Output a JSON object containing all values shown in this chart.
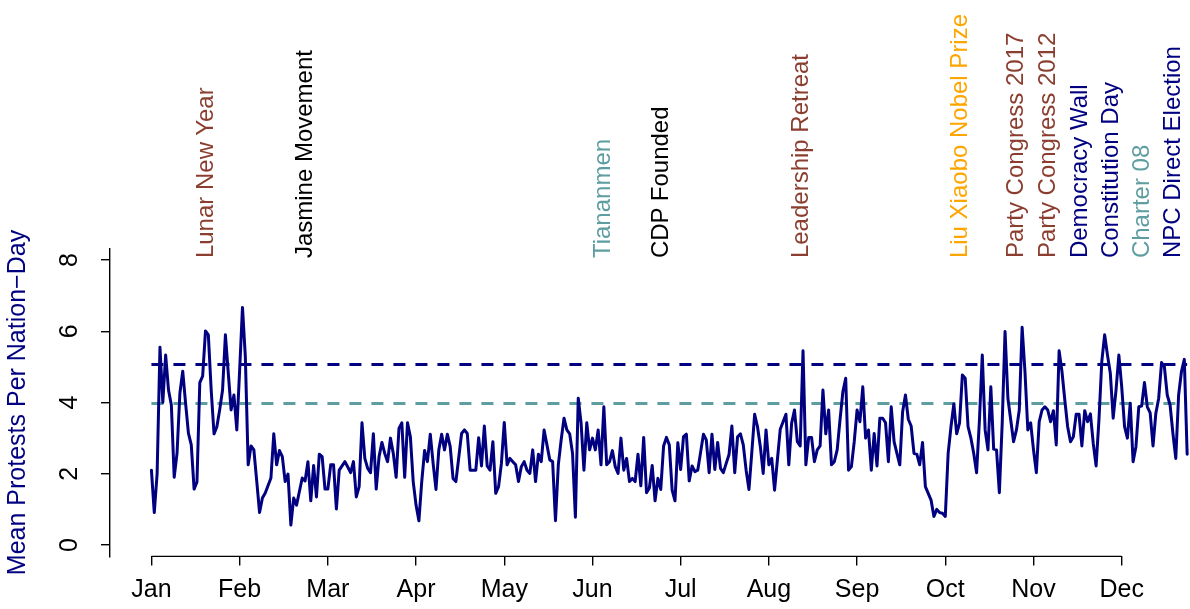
{
  "chart_data": {
    "type": "line",
    "ylabel": "Mean Protests Per Nation−Day",
    "categories": [
      "Jan",
      null,
      null,
      null,
      null,
      null,
      null,
      null,
      null,
      null,
      null,
      null,
      null,
      null,
      null,
      null,
      null,
      null,
      null,
      null,
      null,
      null,
      null,
      null,
      null,
      null,
      null,
      null,
      null,
      null,
      null,
      "Feb",
      null,
      null,
      null,
      null,
      null,
      null,
      null,
      null,
      null,
      null,
      null,
      null,
      null,
      null,
      null,
      null,
      null,
      null,
      null,
      null,
      null,
      null,
      null,
      null,
      null,
      null,
      null,
      null,
      null,
      null,
      "Mar",
      null,
      null,
      null,
      null,
      null,
      null,
      null,
      null,
      null,
      null,
      null,
      null,
      null,
      null,
      null,
      null,
      null,
      null,
      null,
      null,
      null,
      null,
      null,
      null,
      null,
      null,
      null,
      null,
      null,
      null,
      "Apr",
      null,
      null,
      null,
      null,
      null,
      null,
      null,
      null,
      null,
      null,
      null,
      null,
      null,
      null,
      null,
      null,
      null,
      null,
      null,
      null,
      null,
      null,
      null,
      null,
      null,
      null,
      null,
      null,
      null,
      null,
      "May",
      null,
      null,
      null,
      null,
      null,
      null,
      null,
      null,
      null,
      null,
      null,
      null,
      null,
      null,
      null,
      null,
      null,
      null,
      null,
      null,
      null,
      null,
      null,
      null,
      null,
      null,
      null,
      null,
      null,
      null,
      "Jun",
      null,
      null,
      null,
      null,
      null,
      null,
      null,
      null,
      null,
      null,
      null,
      null,
      null,
      null,
      null,
      null,
      null,
      null,
      null,
      null,
      null,
      null,
      null,
      null,
      null,
      null,
      null,
      null,
      null,
      null,
      "Jul",
      null,
      null,
      null,
      null,
      null,
      null,
      null,
      null,
      null,
      null,
      null,
      null,
      null,
      null,
      null,
      null,
      null,
      null,
      null,
      null,
      null,
      null,
      null,
      null,
      null,
      null,
      null,
      null,
      null,
      null,
      "Aug",
      null,
      null,
      null,
      null,
      null,
      null,
      null,
      null,
      null,
      null,
      null,
      null,
      null,
      null,
      null,
      null,
      null,
      null,
      null,
      null,
      null,
      null,
      null,
      null,
      null,
      null,
      null,
      null,
      null,
      null,
      "Sep",
      null,
      null,
      null,
      null,
      null,
      null,
      null,
      null,
      null,
      null,
      null,
      null,
      null,
      null,
      null,
      null,
      null,
      null,
      null,
      null,
      null,
      null,
      null,
      null,
      null,
      null,
      null,
      null,
      null,
      null,
      "Oct",
      null,
      null,
      null,
      null,
      null,
      null,
      null,
      null,
      null,
      null,
      null,
      null,
      null,
      null,
      null,
      null,
      null,
      null,
      null,
      null,
      null,
      null,
      null,
      null,
      null,
      null,
      null,
      null,
      null,
      null,
      "Nov",
      null,
      null,
      null,
      null,
      null,
      null,
      null,
      null,
      null,
      null,
      null,
      null,
      null,
      null,
      null,
      null,
      null,
      null,
      null,
      null,
      null,
      null,
      null,
      null,
      null,
      null,
      null,
      null,
      null,
      null,
      "Dec",
      null,
      null,
      null,
      null,
      null,
      null,
      null,
      null,
      null,
      null,
      null,
      null,
      null,
      null,
      null,
      null,
      null,
      null,
      null,
      null,
      null,
      null,
      null
    ],
    "ylim": [
      -0.32,
      8.32
    ],
    "yticks": [
      0,
      2,
      4,
      6,
      8
    ],
    "grid": false,
    "legend": false,
    "ref_lines": [
      {
        "axis": "y",
        "value": 5.07,
        "color": "#000080",
        "line_style": "dashed"
      },
      {
        "axis": "y",
        "value": 3.97,
        "color": "#5f9ea0",
        "line_style": "dashed"
      }
    ],
    "annotations": [
      "Lunar New Year",
      "Jasmine Movement",
      "Tiananmen",
      "CDP Founded",
      "Leadership Retreat",
      "Liu Xiaobo Nobel Prize",
      "Party Congress 2017",
      "Party Congress 2012",
      "Democracy Wall",
      "Constitution Day",
      "Charter 08",
      "NPC Direct Election"
    ],
    "series": [
      {
        "color": "#000080",
        "values": [
          2.1,
          0.91,
          2.0,
          5.55,
          4.0,
          5.33,
          4.35,
          3.93,
          1.9,
          2.58,
          4.26,
          4.88,
          3.98,
          3.14,
          2.81,
          1.57,
          1.77,
          4.56,
          4.74,
          6.01,
          5.9,
          4.35,
          3.12,
          3.32,
          3.8,
          4.35,
          5.9,
          4.83,
          3.79,
          4.21,
          3.23,
          4.9,
          6.67,
          5.29,
          2.25,
          2.78,
          2.67,
          1.8,
          0.91,
          1.32,
          1.46,
          1.67,
          1.88,
          3.12,
          2.25,
          2.65,
          2.48,
          1.78,
          1.99,
          0.56,
          1.32,
          1.12,
          1.5,
          1.88,
          1.8,
          2.34,
          1.24,
          2.23,
          1.35,
          2.55,
          2.48,
          1.57,
          1.57,
          2.25,
          2.25,
          1.01,
          2.1,
          2.22,
          2.34,
          2.19,
          2.03,
          2.34,
          1.35,
          1.64,
          3.43,
          2.43,
          2.15,
          2.03,
          3.12,
          1.57,
          2.48,
          2.88,
          2.57,
          2.34,
          3.0,
          2.57,
          1.9,
          3.27,
          3.43,
          1.9,
          3.43,
          3.04,
          1.78,
          1.12,
          0.68,
          1.78,
          2.65,
          2.34,
          3.11,
          2.29,
          1.56,
          2.67,
          3.11,
          2.67,
          3.11,
          2.76,
          1.87,
          1.78,
          2.45,
          3.13,
          3.23,
          3.13,
          2.1,
          2.1,
          2.1,
          3.01,
          2.22,
          3.34,
          2.22,
          2.1,
          2.9,
          1.45,
          1.64,
          2.29,
          3.44,
          2.25,
          2.43,
          2.34,
          2.25,
          1.78,
          2.2,
          2.34,
          2.1,
          2.01,
          2.67,
          1.78,
          2.55,
          2.34,
          3.23,
          2.81,
          2.39,
          2.34,
          0.68,
          2.25,
          2.95,
          3.56,
          3.23,
          3.12,
          2.57,
          0.78,
          4.12,
          3.42,
          2.1,
          3.43,
          2.67,
          3.0,
          2.67,
          3.23,
          2.25,
          3.88,
          2.25,
          2.34,
          2.65,
          2.2,
          2.01,
          3.0,
          2.1,
          2.43,
          1.78,
          1.87,
          1.78,
          2.55,
          1.66,
          3.02,
          1.47,
          1.6,
          2.23,
          1.24,
          1.87,
          1.56,
          2.78,
          3.02,
          2.81,
          1.54,
          1.24,
          2.87,
          2.12,
          3.04,
          3.11,
          1.8,
          2.22,
          2.06,
          2.1,
          2.6,
          3.11,
          2.95,
          2.03,
          3.11,
          2.12,
          2.88,
          2.15,
          2.03,
          2.29,
          2.54,
          3.34,
          2.03,
          3.04,
          3.12,
          2.81,
          2.1,
          1.56,
          2.6,
          3.67,
          3.32,
          2.76,
          2.01,
          3.23,
          2.25,
          2.43,
          1.54,
          2.4,
          3.25,
          3.46,
          3.67,
          2.25,
          3.42,
          3.79,
          2.9,
          2.78,
          5.45,
          2.25,
          3.02,
          3.02,
          2.34,
          2.67,
          2.78,
          4.35,
          3.12,
          3.79,
          2.25,
          2.34,
          2.67,
          3.51,
          4.3,
          4.68,
          2.1,
          2.2,
          2.9,
          3.79,
          3.46,
          4.44,
          3.0,
          3.23,
          2.1,
          3.13,
          2.22,
          3.56,
          3.56,
          3.43,
          2.34,
          3.88,
          2.9,
          2.57,
          2.25,
          3.74,
          4.21,
          3.53,
          3.34,
          2.57,
          2.55,
          2.25,
          2.88,
          1.64,
          1.45,
          1.26,
          0.8,
          1.0,
          0.91,
          0.89,
          0.8,
          2.57,
          3.32,
          3.96,
          3.12,
          3.42,
          4.77,
          4.68,
          3.32,
          3.0,
          2.57,
          2.03,
          3.51,
          5.33,
          3.23,
          2.67,
          4.44,
          2.69,
          2.67,
          1.47,
          3.42,
          5.99,
          4.12,
          3.51,
          2.9,
          3.23,
          3.79,
          6.11,
          4.87,
          3.23,
          3.43,
          2.67,
          2.03,
          3.46,
          3.79,
          3.88,
          3.79,
          3.46,
          3.77,
          2.81,
          5.45,
          4.87,
          4.07,
          3.32,
          2.9,
          3.04,
          3.67,
          3.67,
          2.78,
          3.77,
          3.46,
          3.68,
          2.85,
          2.22,
          3.51,
          5.15,
          5.9,
          5.33,
          4.82,
          3.56,
          4.35,
          5.33,
          4.44,
          3.32,
          3.0,
          3.98,
          2.34,
          2.76,
          3.88,
          3.9,
          4.56,
          3.88,
          3.71,
          2.78,
          3.7,
          4.12,
          5.12,
          5.0,
          4.21,
          3.93,
          3.13,
          2.43,
          4.21,
          4.87,
          5.21,
          2.55
        ]
      }
    ]
  }
}
